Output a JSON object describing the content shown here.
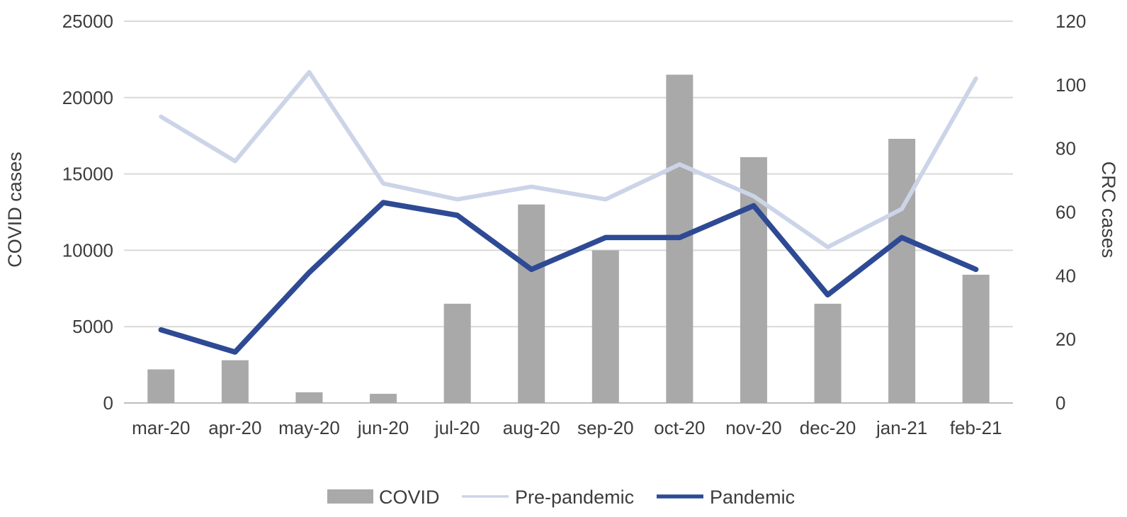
{
  "chart_data": {
    "type": "combo-bar-line",
    "title": "",
    "categories": [
      "mar-20",
      "apr-20",
      "may-20",
      "jun-20",
      "jul-20",
      "aug-20",
      "sep-20",
      "oct-20",
      "nov-20",
      "dec-20",
      "jan-21",
      "feb-21"
    ],
    "series": [
      {
        "name": "COVID",
        "type": "bar",
        "axis": "left",
        "color": "#a9a9a9",
        "values": [
          2200,
          2800,
          700,
          600,
          6500,
          13000,
          10000,
          21500,
          16100,
          6500,
          17300,
          8400
        ]
      },
      {
        "name": "Pre-pandemic",
        "type": "line",
        "axis": "right",
        "color": "#ccd4e8",
        "values": [
          90,
          76,
          104,
          69,
          64,
          68,
          64,
          75,
          65,
          49,
          61,
          102
        ]
      },
      {
        "name": "Pandemic",
        "type": "line",
        "axis": "right",
        "color": "#2e4a94",
        "values": [
          23,
          16,
          41,
          63,
          59,
          42,
          52,
          52,
          62,
          34,
          52,
          42
        ]
      }
    ],
    "left_axis": {
      "title": "COVID cases",
      "min": 0,
      "max": 25000,
      "step": 5000,
      "tick_labels": [
        "0",
        "5000",
        "10000",
        "15000",
        "20000",
        "25000"
      ]
    },
    "right_axis": {
      "title": "CRC cases",
      "min": 0,
      "max": 120,
      "step": 20,
      "tick_labels": [
        "0",
        "20",
        "40",
        "60",
        "80",
        "100",
        "120"
      ]
    },
    "legend": [
      "COVID",
      "Pre-pandemic",
      "Pandemic"
    ],
    "legend_position": "bottom",
    "grid": true,
    "colors": {
      "gridline": "#d9d9d9",
      "axis_line": "#bdbdbd",
      "text": "#3d3d3d",
      "background": "#ffffff"
    }
  }
}
